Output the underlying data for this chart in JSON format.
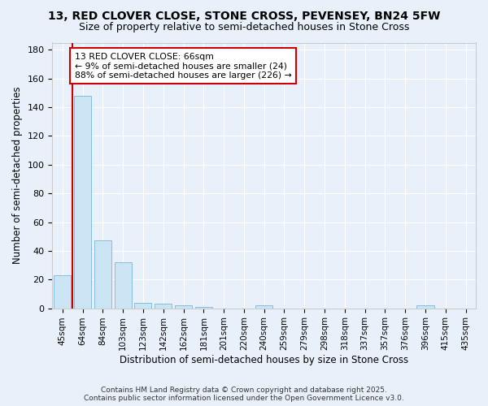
{
  "title1": "13, RED CLOVER CLOSE, STONE CROSS, PEVENSEY, BN24 5FW",
  "title2": "Size of property relative to semi-detached houses in Stone Cross",
  "xlabel": "Distribution of semi-detached houses by size in Stone Cross",
  "ylabel": "Number of semi-detached properties",
  "bins": [
    "45sqm",
    "64sqm",
    "84sqm",
    "103sqm",
    "123sqm",
    "142sqm",
    "162sqm",
    "181sqm",
    "201sqm",
    "220sqm",
    "240sqm",
    "259sqm",
    "279sqm",
    "298sqm",
    "318sqm",
    "337sqm",
    "357sqm",
    "376sqm",
    "396sqm",
    "415sqm",
    "435sqm"
  ],
  "values": [
    23,
    148,
    47,
    32,
    4,
    3,
    2,
    1,
    0,
    0,
    2,
    0,
    0,
    0,
    0,
    0,
    0,
    0,
    2,
    0,
    0
  ],
  "bar_color": "#cce5f5",
  "bar_edge_color": "#88bde0",
  "background_color": "#e8f0fa",
  "grid_color": "#ffffff",
  "red_line_x": 0.5,
  "annotation_title": "13 RED CLOVER CLOSE: 66sqm",
  "annotation_line1": "← 9% of semi-detached houses are smaller (24)",
  "annotation_line2": "88% of semi-detached houses are larger (226) →",
  "annotation_box_color": "#ffffff",
  "annotation_box_edge": "#cc0000",
  "red_line_color": "#cc0000",
  "ylim": [
    0,
    185
  ],
  "yticks": [
    0,
    20,
    40,
    60,
    80,
    100,
    120,
    140,
    160,
    180
  ],
  "footer1": "Contains HM Land Registry data © Crown copyright and database right 2025.",
  "footer2": "Contains public sector information licensed under the Open Government Licence v3.0."
}
